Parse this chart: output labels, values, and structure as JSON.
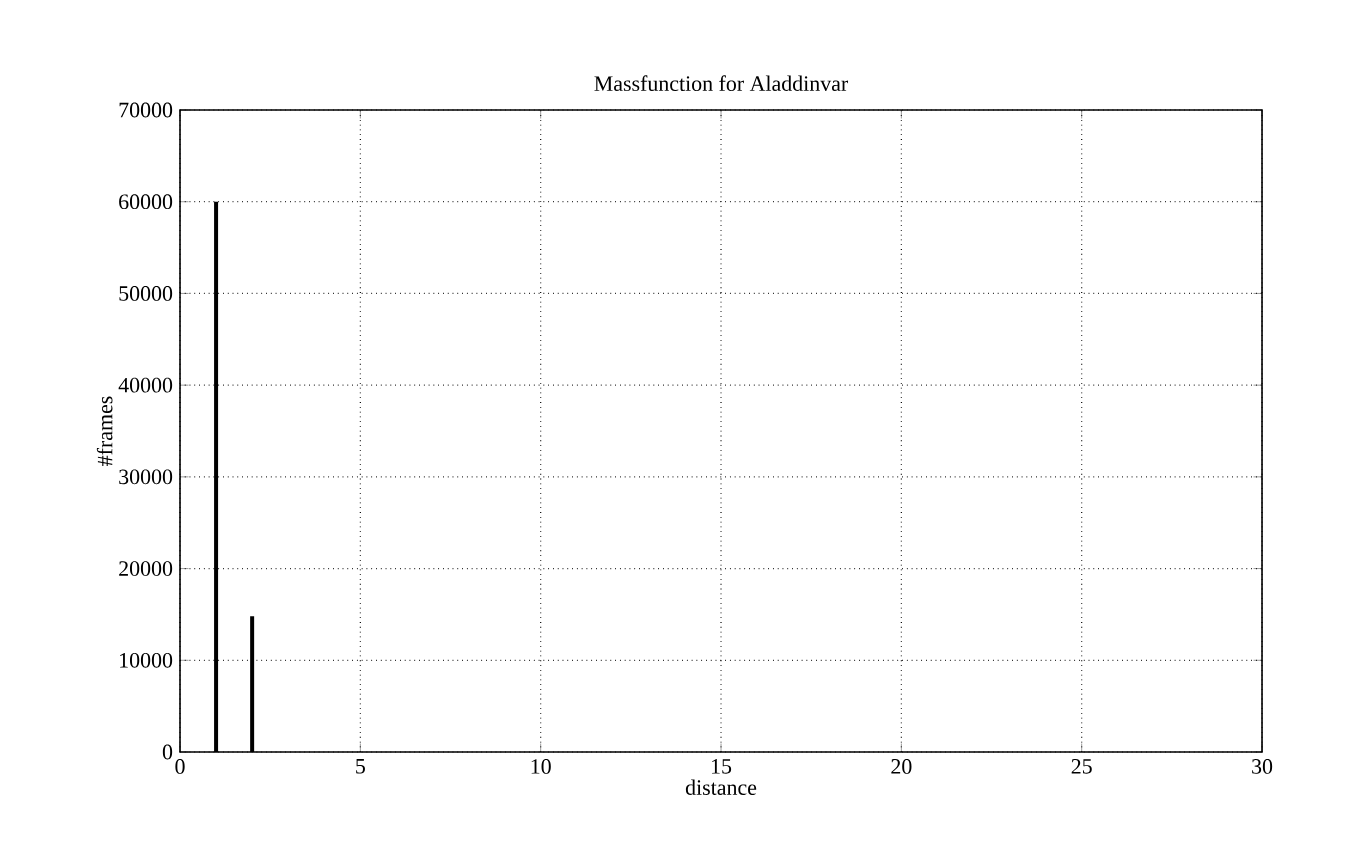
{
  "chart_data": {
    "type": "bar",
    "title": "Massfunction for Aladdinvar",
    "xlabel": "distance",
    "ylabel": "#frames",
    "x": [
      1,
      2
    ],
    "values": [
      60000,
      14800
    ],
    "color": "#000000",
    "xlim": [
      0,
      30
    ],
    "xticks": [
      0,
      5,
      10,
      15,
      20,
      25,
      30
    ],
    "ylim": [
      0,
      70000
    ],
    "yticks": [
      0,
      10000,
      20000,
      30000,
      40000,
      50000,
      60000,
      70000
    ],
    "grid": true
  }
}
